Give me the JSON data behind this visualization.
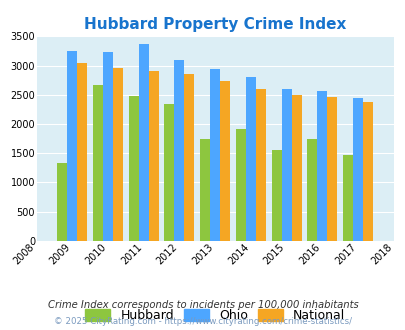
{
  "title": "Hubbard Property Crime Index",
  "title_color": "#1874cd",
  "years": [
    2008,
    2009,
    2010,
    2011,
    2012,
    2013,
    2014,
    2015,
    2016,
    2017,
    2018
  ],
  "bar_years": [
    2009,
    2010,
    2011,
    2012,
    2013,
    2014,
    2015,
    2016,
    2017
  ],
  "hubbard": [
    1340,
    2670,
    2480,
    2340,
    1750,
    1920,
    1550,
    1750,
    1470
  ],
  "ohio": [
    3250,
    3230,
    3360,
    3100,
    2940,
    2800,
    2590,
    2570,
    2440
  ],
  "national": [
    3040,
    2960,
    2900,
    2860,
    2730,
    2600,
    2490,
    2470,
    2380
  ],
  "color_hubbard": "#8dc63f",
  "color_ohio": "#4da6ff",
  "color_national": "#f5a623",
  "ylim": [
    0,
    3500
  ],
  "yticks": [
    0,
    500,
    1000,
    1500,
    2000,
    2500,
    3000,
    3500
  ],
  "bg_color": "#dceef5",
  "legend_note": "Crime Index corresponds to incidents per 100,000 inhabitants",
  "copyright": "© 2025 CityRating.com - https://www.cityrating.com/crime-statistics/",
  "bar_width": 0.28
}
